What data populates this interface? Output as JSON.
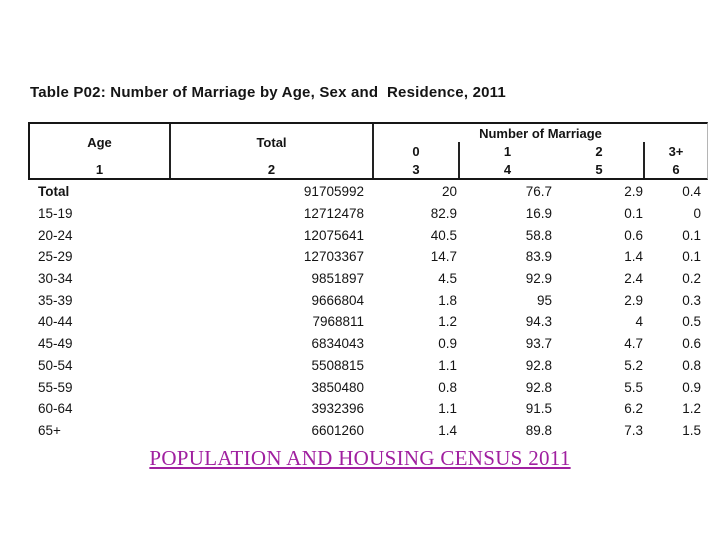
{
  "caption": {
    "text": "POPULATION AND HOUSING CENSUS 2011",
    "color": "#A020A0"
  },
  "chart_data": {
    "type": "table",
    "title": "Table P02: Number of Marriage by Age, Sex and  Residence, 2011",
    "header": {
      "age_label": "Age",
      "total_label": "Total",
      "group_label": "Number of Marriage",
      "sub_labels": [
        "0",
        "1",
        "2",
        "3+"
      ],
      "column_numbers": [
        "1",
        "2",
        "3",
        "4",
        "5",
        "6"
      ]
    },
    "columns": [
      "Age",
      "Total",
      "0",
      "1",
      "2",
      "3+"
    ],
    "rows": [
      {
        "age": "Total",
        "total": "91705992",
        "m0": "20",
        "m1": "76.7",
        "m2": "2.9",
        "m3": "0.4"
      },
      {
        "age": "15-19",
        "total": "12712478",
        "m0": "82.9",
        "m1": "16.9",
        "m2": "0.1",
        "m3": "0"
      },
      {
        "age": "20-24",
        "total": "12075641",
        "m0": "40.5",
        "m1": "58.8",
        "m2": "0.6",
        "m3": "0.1"
      },
      {
        "age": "25-29",
        "total": "12703367",
        "m0": "14.7",
        "m1": "83.9",
        "m2": "1.4",
        "m3": "0.1"
      },
      {
        "age": "30-34",
        "total": "9851897",
        "m0": "4.5",
        "m1": "92.9",
        "m2": "2.4",
        "m3": "0.2"
      },
      {
        "age": "35-39",
        "total": "9666804",
        "m0": "1.8",
        "m1": "95",
        "m2": "2.9",
        "m3": "0.3"
      },
      {
        "age": "40-44",
        "total": "7968811",
        "m0": "1.2",
        "m1": "94.3",
        "m2": "4",
        "m3": "0.5"
      },
      {
        "age": "45-49",
        "total": "6834043",
        "m0": "0.9",
        "m1": "93.7",
        "m2": "4.7",
        "m3": "0.6"
      },
      {
        "age": "50-54",
        "total": "5508815",
        "m0": "1.1",
        "m1": "92.8",
        "m2": "5.2",
        "m3": "0.8"
      },
      {
        "age": "55-59",
        "total": "3850480",
        "m0": "0.8",
        "m1": "92.8",
        "m2": "5.5",
        "m3": "0.9"
      },
      {
        "age": "60-64",
        "total": "3932396",
        "m0": "1.1",
        "m1": "91.5",
        "m2": "6.2",
        "m3": "1.2"
      },
      {
        "age": "65+",
        "total": "6601260",
        "m0": "1.4",
        "m1": "89.8",
        "m2": "7.3",
        "m3": "1.5"
      }
    ]
  }
}
